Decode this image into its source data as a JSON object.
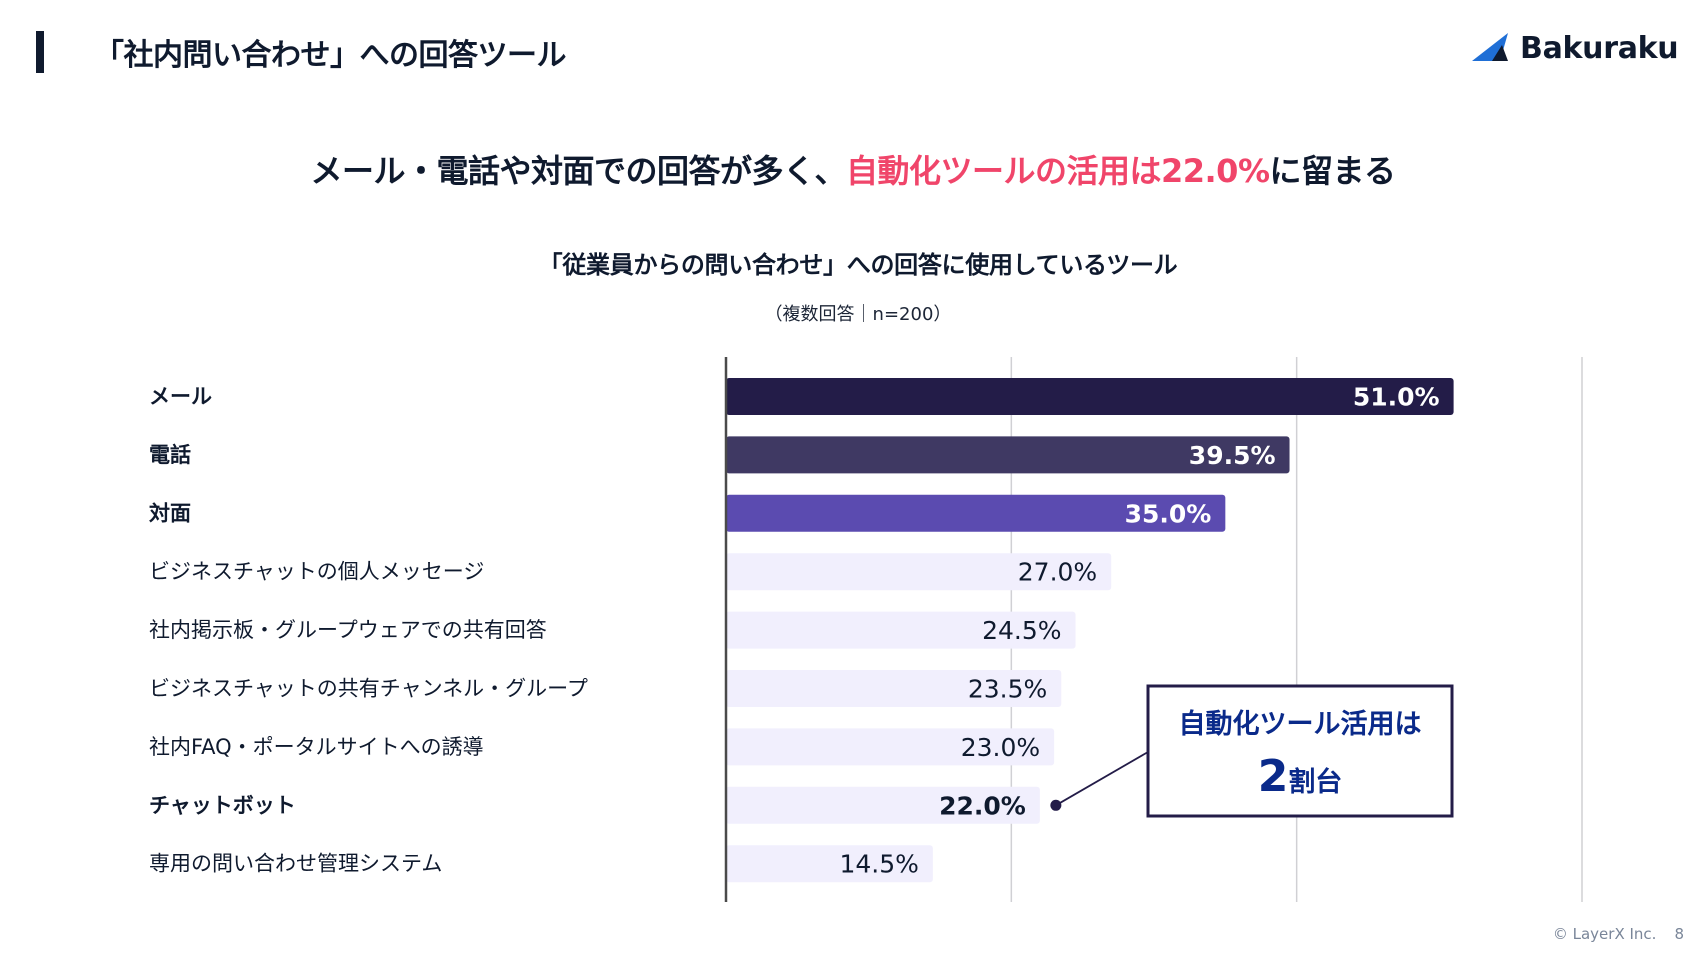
{
  "header": {
    "title": "「社内問い合わせ」への回答ツール",
    "logo_text": "Bakuraku",
    "logo_icon": "bakuraku-triangle-logo"
  },
  "headline": {
    "prefix": "メール・電話や対面での回答が多く、",
    "highlight": "自動化ツールの活用は22.0%",
    "suffix": "に留まる",
    "highlight_color": "#f0456a"
  },
  "chart_data": {
    "type": "bar",
    "orientation": "horizontal",
    "title": "「従業員からの問い合わせ」への回答に使用しているツール",
    "subtitle": "（複数回答｜n=200）",
    "xlabel": "",
    "ylabel": "",
    "xlim": [
      0,
      60
    ],
    "gridlines": [
      20,
      40,
      60
    ],
    "grid": true,
    "unit": "%",
    "categories": [
      "メール",
      "電話",
      "対面",
      "ビジネスチャットの個人メッセージ",
      "社内掲示板・グループウェアでの共有回答",
      "ビジネスチャットの共有チャンネル・グループ",
      "社内FAQ・ポータルサイトへの誘導",
      "チャットボット",
      "専用の問い合わせ管理システム"
    ],
    "values": [
      51.0,
      39.5,
      35.0,
      27.0,
      24.5,
      23.5,
      23.0,
      22.0,
      14.5
    ],
    "value_labels": [
      "51.0%",
      "39.5%",
      "35.0%",
      "27.0%",
      "24.5%",
      "23.5%",
      "23.0%",
      "22.0%",
      "14.5%"
    ],
    "bold_categories": [
      0,
      1,
      2,
      7
    ],
    "bar_colors": [
      "#231c48",
      "#3f3963",
      "#5b4bb0",
      "#f1effd",
      "#f1effd",
      "#f1effd",
      "#f1effd",
      "#f1effd",
      "#f1effd"
    ],
    "label_colors": [
      "#ffffff",
      "#ffffff",
      "#ffffff",
      "#0f1a2e",
      "#0f1a2e",
      "#0f1a2e",
      "#0f1a2e",
      "#0f1a2e",
      "#0f1a2e"
    ],
    "annotation": {
      "target_index": 7,
      "line1": "自動化ツール活用は",
      "line2_number": "2",
      "line2_suffix": "割台"
    }
  },
  "footer": {
    "copyright": "© LayerX Inc.",
    "page_number": "8"
  }
}
